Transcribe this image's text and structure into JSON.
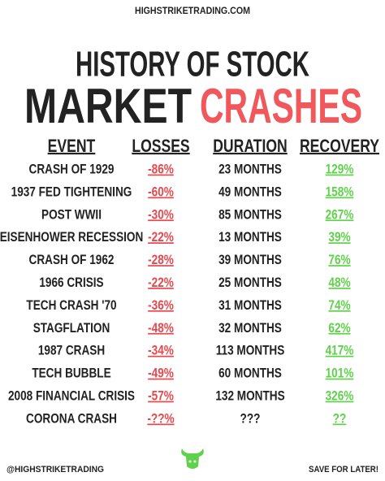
{
  "header": {
    "site": "HIGHSTRIKETRADING.COM",
    "title_line1": "HISTORY OF STOCK",
    "title_word1": "MARKET",
    "title_word2": "CRASHES"
  },
  "table": {
    "columns": [
      "EVENT",
      "LOSSES",
      "DURATION",
      "RECOVERY"
    ],
    "rows": [
      [
        "CRASH OF 1929",
        "-86%",
        "23 MONTHS",
        "129%"
      ],
      [
        "1937 FED TIGHTENING",
        "-60%",
        "49 MONTHS",
        "158%"
      ],
      [
        "POST WWII",
        "-30%",
        "85 MONTHS",
        "267%"
      ],
      [
        "EISENHOWER RECESSION",
        "-22%",
        "13 MONTHS",
        "39%"
      ],
      [
        "CRASH OF 1962",
        "-28%",
        "39 MONTHS",
        "76%"
      ],
      [
        "1966 CRISIS",
        "-22%",
        "25 MONTHS",
        "48%"
      ],
      [
        "TECH CRASH '70",
        "-36%",
        "31 MONTHS",
        "74%"
      ],
      [
        "STAGFLATION",
        "-48%",
        "32 MONTHS",
        "62%"
      ],
      [
        "1987 CRASH",
        "-34%",
        "113 MONTHS",
        "417%"
      ],
      [
        "TECH BUBBLE",
        "-49%",
        "60 MONTHS",
        "101%"
      ],
      [
        "2008 FINANCIAL CRISIS",
        "-57%",
        "132 MONTHS",
        "326%"
      ],
      [
        "CORONA CRASH",
        "-??%",
        "???",
        "??"
      ]
    ]
  },
  "footer": {
    "handle": "@HIGHSTRIKETRADING",
    "cta": "SAVE FOR LATER!"
  }
}
